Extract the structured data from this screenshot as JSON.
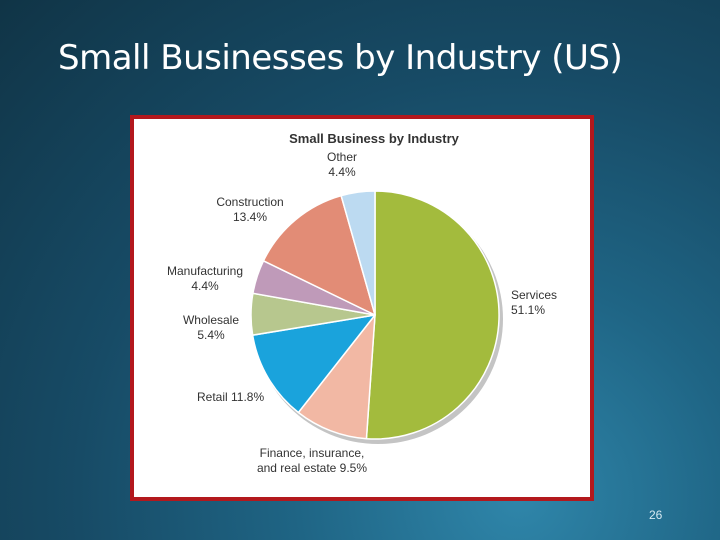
{
  "slide": {
    "title": "Small Businesses by Industry (US)",
    "page_number": "26"
  },
  "chart_data": {
    "type": "pie",
    "title": "Small Business by Industry",
    "unit": "%",
    "start_angle_deg": 0,
    "direction": "clockwise",
    "slices": [
      {
        "name": "Services",
        "value": 51.1,
        "label_lines": [
          "Services",
          "51.1%"
        ],
        "color": "#a3bb3d"
      },
      {
        "name": "Finance, insurance, and real estate",
        "value": 9.5,
        "label_lines": [
          "Finance, insurance,",
          "and real estate 9.5%"
        ],
        "color": "#f2b8a4"
      },
      {
        "name": "Retail",
        "value": 11.8,
        "label_lines": [
          "Retail 11.8%"
        ],
        "color": "#1aa3dc"
      },
      {
        "name": "Wholesale",
        "value": 5.4,
        "label_lines": [
          "Wholesale",
          "5.4%"
        ],
        "color": "#b7c78e"
      },
      {
        "name": "Manufacturing",
        "value": 4.4,
        "label_lines": [
          "Manufacturing",
          "4.4%"
        ],
        "color": "#bf9ab9"
      },
      {
        "name": "Construction",
        "value": 13.4,
        "label_lines": [
          "Construction",
          "13.4%"
        ],
        "color": "#e28c76"
      },
      {
        "name": "Other",
        "value": 4.4,
        "label_lines": [
          "Other",
          "4.4%"
        ],
        "color": "#bcdaf1"
      }
    ]
  }
}
